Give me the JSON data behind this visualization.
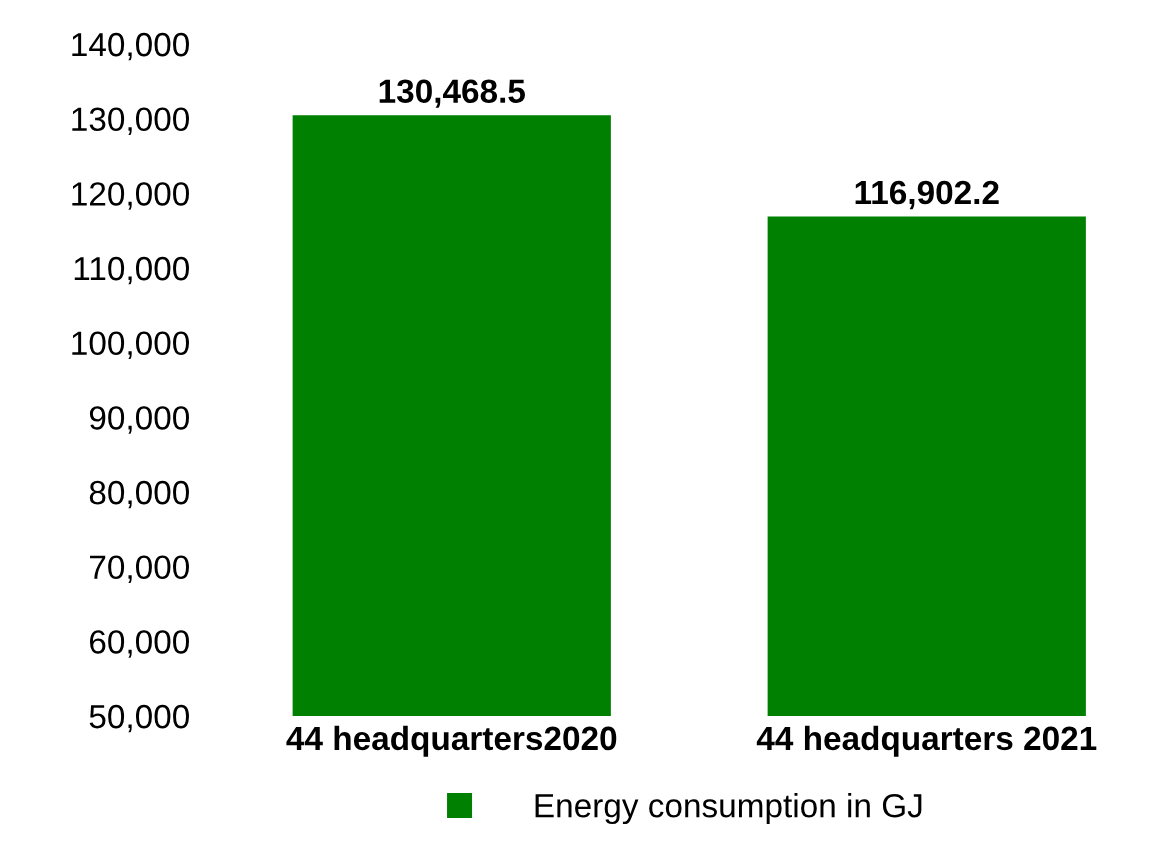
{
  "chart_data": {
    "type": "bar",
    "categories": [
      "44 headquarters2020",
      "44 headquarters 2021"
    ],
    "series": [
      {
        "name": "Energy consumption in GJ",
        "color": "#008000",
        "values": [
          130468.5,
          116902.2
        ]
      }
    ],
    "value_labels": [
      "130,468.5",
      "116,902.2"
    ],
    "ylim": [
      50000,
      140000
    ],
    "yticks": [
      {
        "value": 50000,
        "label": "50,000"
      },
      {
        "value": 60000,
        "label": "60,000"
      },
      {
        "value": 70000,
        "label": "70,000"
      },
      {
        "value": 80000,
        "label": "80,000"
      },
      {
        "value": 90000,
        "label": "90,000"
      },
      {
        "value": 100000,
        "label": "100,000"
      },
      {
        "value": 110000,
        "label": "110,000"
      },
      {
        "value": 120000,
        "label": "120,000"
      },
      {
        "value": 130000,
        "label": "130,000"
      },
      {
        "value": 140000,
        "label": "140,000"
      }
    ],
    "grid": false,
    "legend": "bottom"
  }
}
